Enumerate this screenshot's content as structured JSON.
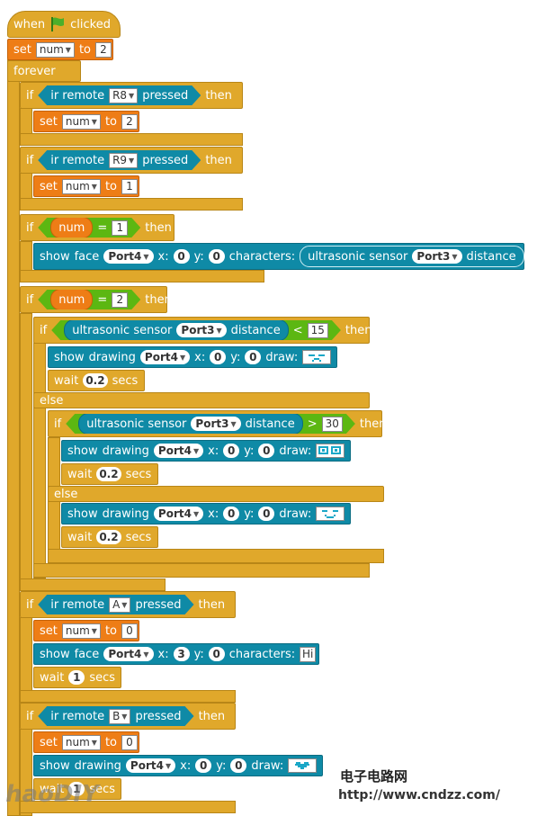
{
  "hat": {
    "when": "when",
    "clicked": "clicked",
    "flag_color": "#4caf2a"
  },
  "set_num_1": {
    "set": "set",
    "var": "num",
    "to": "to",
    "value": "2"
  },
  "forever": {
    "label": "forever"
  },
  "if1": {
    "if": "if",
    "cond": {
      "ir": "ir remote",
      "key": "R8",
      "pressed": "pressed"
    },
    "then": "then",
    "body": {
      "set": "set",
      "var": "num",
      "to": "to",
      "value": "2"
    }
  },
  "if2": {
    "if": "if",
    "cond": {
      "ir": "ir remote",
      "key": "R9",
      "pressed": "pressed"
    },
    "then": "then",
    "body": {
      "set": "set",
      "var": "num",
      "to": "to",
      "value": "1"
    }
  },
  "if3": {
    "if": "if",
    "cond": {
      "var": "num",
      "op": "=",
      "value": "1"
    },
    "then": "then",
    "face": {
      "show": "show",
      "face": "face",
      "port": "Port4",
      "x_lbl": "x:",
      "x": "0",
      "y_lbl": "y:",
      "y": "0",
      "chars": "characters:",
      "sensor": "ultrasonic sensor",
      "sport": "Port3",
      "distance": "distance"
    }
  },
  "if4": {
    "if": "if",
    "cond": {
      "var": "num",
      "op": "=",
      "value": "2"
    },
    "then": "then",
    "inner_if": {
      "if": "if",
      "sensor": "ultrasonic sensor",
      "port": "Port3",
      "distance": "distance",
      "op": "<",
      "value": "15",
      "then": "then",
      "draw": {
        "show": "show",
        "drawing": "drawing",
        "port": "Port4",
        "x_lbl": "x:",
        "x": "0",
        "y_lbl": "y:",
        "y": "0",
        "draw": "draw:"
      },
      "wait": {
        "wait": "wait",
        "value": "0.2",
        "secs": "secs"
      }
    },
    "else_1": "else",
    "inner_if2": {
      "if": "if",
      "sensor": "ultrasonic sensor",
      "port": "Port3",
      "distance": "distance",
      "op": ">",
      "value": "30",
      "then": "then",
      "draw": {
        "show": "show",
        "drawing": "drawing",
        "port": "Port4",
        "x_lbl": "x:",
        "x": "0",
        "y_lbl": "y:",
        "y": "0",
        "draw": "draw:"
      },
      "wait": {
        "wait": "wait",
        "value": "0.2",
        "secs": "secs"
      }
    },
    "else_2": "else",
    "else_body": {
      "draw": {
        "show": "show",
        "drawing": "drawing",
        "port": "Port4",
        "x_lbl": "x:",
        "x": "0",
        "y_lbl": "y:",
        "y": "0",
        "draw": "draw:"
      },
      "wait": {
        "wait": "wait",
        "value": "0.2",
        "secs": "secs"
      }
    }
  },
  "if5": {
    "if": "if",
    "cond": {
      "ir": "ir remote",
      "key": "A",
      "pressed": "pressed"
    },
    "then": "then",
    "set": {
      "set": "set",
      "var": "num",
      "to": "to",
      "value": "0"
    },
    "face": {
      "show": "show",
      "face": "face",
      "port": "Port4",
      "x_lbl": "x:",
      "x": "3",
      "y_lbl": "y:",
      "y": "0",
      "chars": "characters:",
      "text": "Hi"
    },
    "wait": {
      "wait": "wait",
      "value": "1",
      "secs": "secs"
    }
  },
  "if6": {
    "if": "if",
    "cond": {
      "ir": "ir remote",
      "key": "B",
      "pressed": "pressed"
    },
    "then": "then",
    "set": {
      "set": "set",
      "var": "num",
      "to": "to",
      "value": "0"
    },
    "draw": {
      "show": "show",
      "drawing": "drawing",
      "port": "Port4",
      "x_lbl": "x:",
      "x": "0",
      "y_lbl": "y:",
      "y": "0",
      "draw": "draw:"
    },
    "wait": {
      "wait": "wait",
      "value": "1",
      "secs": "secs"
    }
  },
  "watermark": {
    "cn": "电子电路网",
    "url": "http://www.cndzz.com/",
    "logo": "haoDIY"
  }
}
